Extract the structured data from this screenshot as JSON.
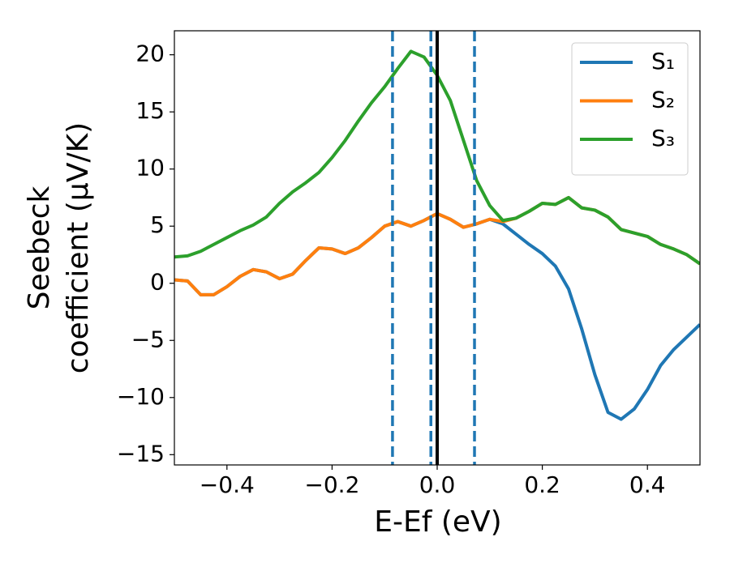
{
  "chart_data": {
    "type": "line",
    "xlabel": "E-Ef (eV)",
    "ylabel": [
      "Seebeck",
      "coefficient  (μV/K)"
    ],
    "x": [
      -0.5,
      -0.475,
      -0.45,
      -0.425,
      -0.4,
      -0.375,
      -0.35,
      -0.325,
      -0.3,
      -0.275,
      -0.25,
      -0.225,
      -0.2,
      -0.175,
      -0.15,
      -0.125,
      -0.1,
      -0.075,
      -0.05,
      -0.025,
      0,
      0.025,
      0.05,
      0.075,
      0.1,
      0.125,
      0.15,
      0.175,
      0.2,
      0.225,
      0.25,
      0.275,
      0.3,
      0.325,
      0.35,
      0.375,
      0.4,
      0.425,
      0.45,
      0.475,
      0.5
    ],
    "series": [
      {
        "name": "S₁",
        "color": "#1f77b4",
        "values": [
          0.3,
          0.2,
          -1.0,
          -1.0,
          -0.3,
          0.6,
          1.2,
          1.0,
          0.4,
          0.8,
          2.0,
          3.1,
          3.0,
          2.6,
          3.1,
          4.0,
          5.0,
          5.4,
          5.0,
          5.5,
          6.1,
          5.6,
          4.9,
          5.2,
          5.6,
          5.2,
          4.3,
          3.4,
          2.6,
          1.5,
          -0.5,
          -4.0,
          -8.0,
          -11.3,
          -11.9,
          -11.0,
          -9.3,
          -7.2,
          -5.8,
          -4.7,
          -3.6
        ]
      },
      {
        "name": "S₂",
        "color": "#ff7f0e",
        "values": [
          0.3,
          0.2,
          -1.0,
          -1.0,
          -0.3,
          0.6,
          1.2,
          1.0,
          0.4,
          0.8,
          2.0,
          3.1,
          3.0,
          2.6,
          3.1,
          4.0,
          5.0,
          5.4,
          5.0,
          5.5,
          6.1,
          5.6,
          4.9,
          5.2,
          5.6,
          5.4,
          5.7,
          6.3,
          7.0,
          6.9,
          7.5,
          6.6,
          6.4,
          5.8,
          4.7,
          4.4,
          4.1,
          3.4,
          3.0,
          2.5,
          1.7
        ]
      },
      {
        "name": "S₃",
        "color": "#2ca02c",
        "values": [
          2.3,
          2.4,
          2.8,
          3.4,
          4.0,
          4.6,
          5.1,
          5.8,
          7.0,
          8.0,
          8.8,
          9.7,
          11.0,
          12.5,
          14.2,
          15.8,
          17.2,
          18.8,
          20.3,
          19.8,
          18.2,
          16.0,
          12.5,
          9.0,
          6.8,
          5.5,
          5.7,
          6.3,
          7.0,
          6.9,
          7.5,
          6.6,
          6.4,
          5.8,
          4.7,
          4.4,
          4.1,
          3.4,
          3.0,
          2.5,
          1.7
        ]
      }
    ],
    "vlines": [
      {
        "x": -0.085,
        "color": "#1f77b4",
        "style": "dashed"
      },
      {
        "x": -0.012,
        "color": "#1f77b4",
        "style": "dashed"
      },
      {
        "x": 0.071,
        "color": "#1f77b4",
        "style": "dashed"
      },
      {
        "x": 0,
        "color": "#000000",
        "style": "solid"
      }
    ],
    "xlim": [
      -0.5,
      0.5
    ],
    "ylim": [
      -15.9,
      22.1
    ],
    "xticks": [
      {
        "value": -0.4,
        "label": "−0.4"
      },
      {
        "value": -0.2,
        "label": "−0.2"
      },
      {
        "value": 0,
        "label": "0.0"
      },
      0.2,
      0.4
    ],
    "yticks": [
      {
        "value": -15,
        "label": "−15"
      },
      {
        "value": -10,
        "label": "−10"
      },
      {
        "value": -5,
        "label": "−5"
      },
      0,
      5,
      10,
      15,
      20
    ],
    "grid": false,
    "legend": "upper right"
  }
}
